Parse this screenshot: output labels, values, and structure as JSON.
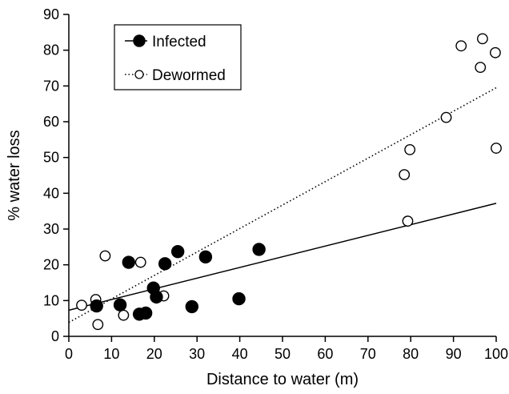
{
  "chart_data": {
    "type": "scatter",
    "title": "",
    "xlabel": "Distance to water (m)",
    "ylabel": "% water loss",
    "xlim": [
      0,
      100
    ],
    "ylim": [
      0,
      90
    ],
    "xticks": [
      0,
      10,
      20,
      30,
      40,
      50,
      60,
      70,
      80,
      90,
      100
    ],
    "yticks": [
      0,
      10,
      20,
      30,
      40,
      50,
      60,
      70,
      80,
      90
    ],
    "grid": false,
    "legend_position": "top-left",
    "series": [
      {
        "name": "Infected",
        "marker": "filled-circle",
        "line_style": "solid",
        "fit": {
          "x": [
            0,
            100
          ],
          "y": [
            7.3,
            37.2
          ]
        },
        "points": [
          {
            "x": 6.5,
            "y": 8.5
          },
          {
            "x": 12,
            "y": 8.8
          },
          {
            "x": 14,
            "y": 20.7
          },
          {
            "x": 16.5,
            "y": 6.2
          },
          {
            "x": 18,
            "y": 6.5
          },
          {
            "x": 19.8,
            "y": 13.5
          },
          {
            "x": 20.5,
            "y": 11
          },
          {
            "x": 22.5,
            "y": 20.3
          },
          {
            "x": 25.5,
            "y": 23.7
          },
          {
            "x": 28.8,
            "y": 8.3
          },
          {
            "x": 32,
            "y": 22.2
          },
          {
            "x": 39.8,
            "y": 10.5
          },
          {
            "x": 44.5,
            "y": 24.3
          }
        ]
      },
      {
        "name": "Dewormed",
        "marker": "open-circle",
        "line_style": "dotted",
        "fit": {
          "x": [
            0,
            100
          ],
          "y": [
            3.9,
            69.5
          ]
        },
        "points": [
          {
            "x": 3,
            "y": 8.7
          },
          {
            "x": 6.3,
            "y": 10.3
          },
          {
            "x": 6.8,
            "y": 3.3
          },
          {
            "x": 8.5,
            "y": 22.5
          },
          {
            "x": 12.8,
            "y": 5.9
          },
          {
            "x": 16.8,
            "y": 20.7
          },
          {
            "x": 22.2,
            "y": 11.3
          },
          {
            "x": 78.5,
            "y": 45.2
          },
          {
            "x": 79.3,
            "y": 32.2
          },
          {
            "x": 79.8,
            "y": 52.2
          },
          {
            "x": 88.3,
            "y": 61.2
          },
          {
            "x": 91.8,
            "y": 81.2
          },
          {
            "x": 96.3,
            "y": 75.2
          },
          {
            "x": 96.8,
            "y": 83.2
          },
          {
            "x": 99.8,
            "y": 79.3
          },
          {
            "x": 100,
            "y": 52.6
          }
        ]
      }
    ]
  }
}
